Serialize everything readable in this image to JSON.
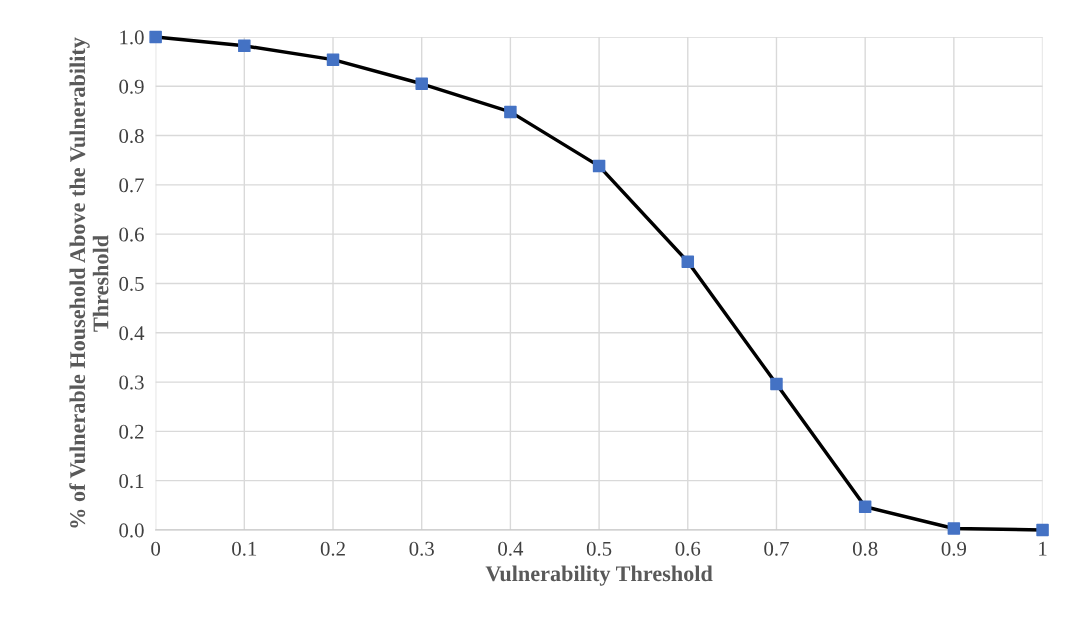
{
  "chart_data": {
    "type": "line",
    "xlabel": "Vulnerability Threshold",
    "ylabel": "% of Vulnerable Household Above the Vulnerability Threshold",
    "x": [
      0,
      0.1,
      0.2,
      0.3,
      0.4,
      0.5,
      0.6,
      0.7,
      0.8,
      0.9,
      1
    ],
    "series": [
      {
        "color": "#000000",
        "colors": [
          "#4472c4",
          "#4472c4",
          "#4472c4",
          "#4472c4",
          "#4472c4",
          "#4472c4",
          "#4472c4",
          "#4472c4",
          "#4472c4",
          "#4472c4",
          "#4472c4"
        ],
        "values": [
          1.0,
          0.982,
          0.954,
          0.905,
          0.848,
          0.738,
          0.544,
          0.296,
          0.047,
          0.003,
          0.0
        ]
      }
    ],
    "xlim": [
      0,
      1
    ],
    "xticks": [
      0,
      0.1,
      0.2,
      0.3,
      0.4,
      0.5,
      0.6,
      0.7,
      0.8,
      0.9,
      1
    ],
    "ylim": [
      0,
      1.0
    ],
    "yticks": [
      {
        "value": 0,
        "label": "0.0"
      },
      {
        "value": 0.1,
        "label": "0.1"
      },
      {
        "value": 0.2,
        "label": "0.2"
      },
      {
        "value": 0.3,
        "label": "0.3"
      },
      {
        "value": 0.4,
        "label": "0.4"
      },
      {
        "value": 0.5,
        "label": "0.5"
      },
      {
        "value": 0.6,
        "label": "0.6"
      },
      {
        "value": 0.7,
        "label": "0.7"
      },
      {
        "value": 0.8,
        "label": "0.8"
      },
      {
        "value": 0.9,
        "label": "0.9"
      },
      {
        "value": 1.0,
        "label": "1.0"
      }
    ],
    "grid": true,
    "marker": "square",
    "line_style": "solid"
  }
}
